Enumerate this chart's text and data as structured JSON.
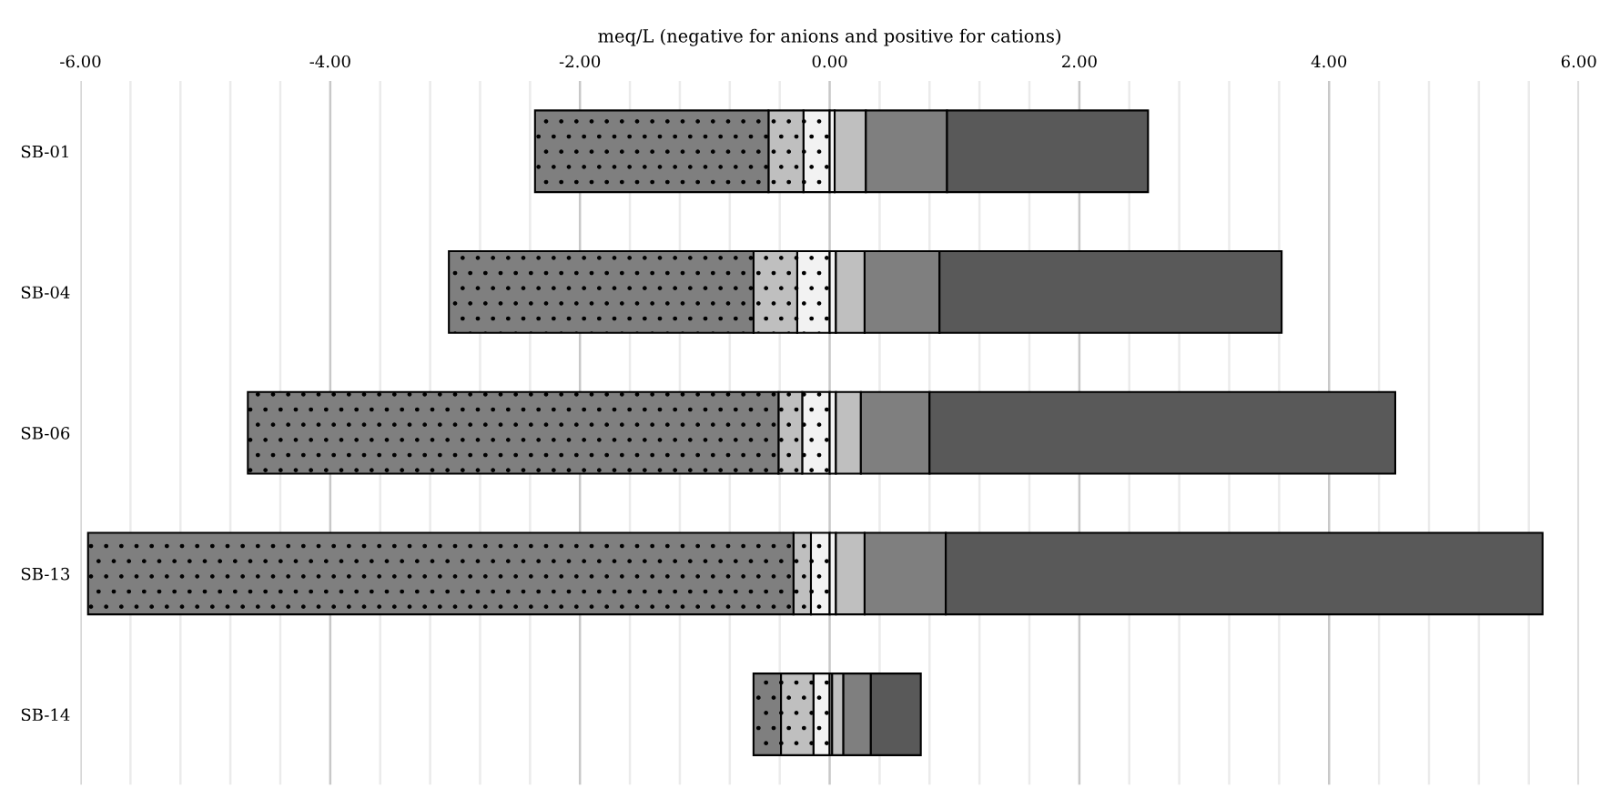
{
  "chart_data": {
    "type": "bar",
    "orientation": "horizontal",
    "stacked": true,
    "xlabel": "meq/L (negative for anions and positive for cations)",
    "categories": [
      "SB-01",
      "SB-04",
      "SB-06",
      "SB-13",
      "SB-14"
    ],
    "series": [
      {
        "color": "#f2f2f2",
        "values": [
          -0.21,
          -0.26,
          -0.22,
          -0.15,
          -0.13
        ]
      },
      {
        "color": "#bfbfbf",
        "values": [
          -0.28,
          -0.35,
          -0.19,
          -0.14,
          -0.26
        ]
      },
      {
        "color": "#7f7f7f",
        "values": [
          -1.87,
          -2.44,
          -4.25,
          -5.65,
          -0.22
        ]
      },
      {
        "color": "#f2f2f2",
        "values": [
          0.04,
          0.05,
          0.05,
          0.05,
          0.02
        ]
      },
      {
        "color": "#bfbfbf",
        "values": [
          0.25,
          0.23,
          0.2,
          0.23,
          0.09
        ]
      },
      {
        "color": "#7f7f7f",
        "values": [
          0.65,
          0.6,
          0.55,
          0.65,
          0.22
        ]
      },
      {
        "color": "#595959",
        "values": [
          1.61,
          2.74,
          3.73,
          4.78,
          0.4
        ]
      }
    ],
    "xlim": [
      -6,
      6
    ],
    "xticks": [
      {
        "value": -6,
        "label": "-6.00"
      },
      {
        "value": -5.6,
        "label": null
      },
      {
        "value": -5.2,
        "label": null
      },
      {
        "value": -4.8,
        "label": null
      },
      {
        "value": -4.4,
        "label": null
      },
      {
        "value": -4,
        "label": "-4.00"
      },
      {
        "value": -3.6,
        "label": null
      },
      {
        "value": -3.2,
        "label": null
      },
      {
        "value": -2.8,
        "label": null
      },
      {
        "value": -2.4,
        "label": null
      },
      {
        "value": -2,
        "label": "-2.00"
      },
      {
        "value": -1.6,
        "label": null
      },
      {
        "value": -1.2,
        "label": null
      },
      {
        "value": -0.8,
        "label": null
      },
      {
        "value": -0.4,
        "label": null
      },
      {
        "value": 0,
        "label": "0.00"
      },
      {
        "value": 0.4,
        "label": null
      },
      {
        "value": 0.8,
        "label": null
      },
      {
        "value": 1.2,
        "label": null
      },
      {
        "value": 1.6,
        "label": null
      },
      {
        "value": 2,
        "label": "2.00"
      },
      {
        "value": 2.4,
        "label": null
      },
      {
        "value": 2.8,
        "label": null
      },
      {
        "value": 3.2,
        "label": null
      },
      {
        "value": 3.6,
        "label": null
      },
      {
        "value": 4,
        "label": "4.00"
      },
      {
        "value": 4.4,
        "label": null
      },
      {
        "value": 4.8,
        "label": null
      },
      {
        "value": 5.2,
        "label": null
      },
      {
        "value": 5.6,
        "label": null
      },
      {
        "value": 6,
        "label": "6.00"
      }
    ],
    "grid": "x"
  }
}
